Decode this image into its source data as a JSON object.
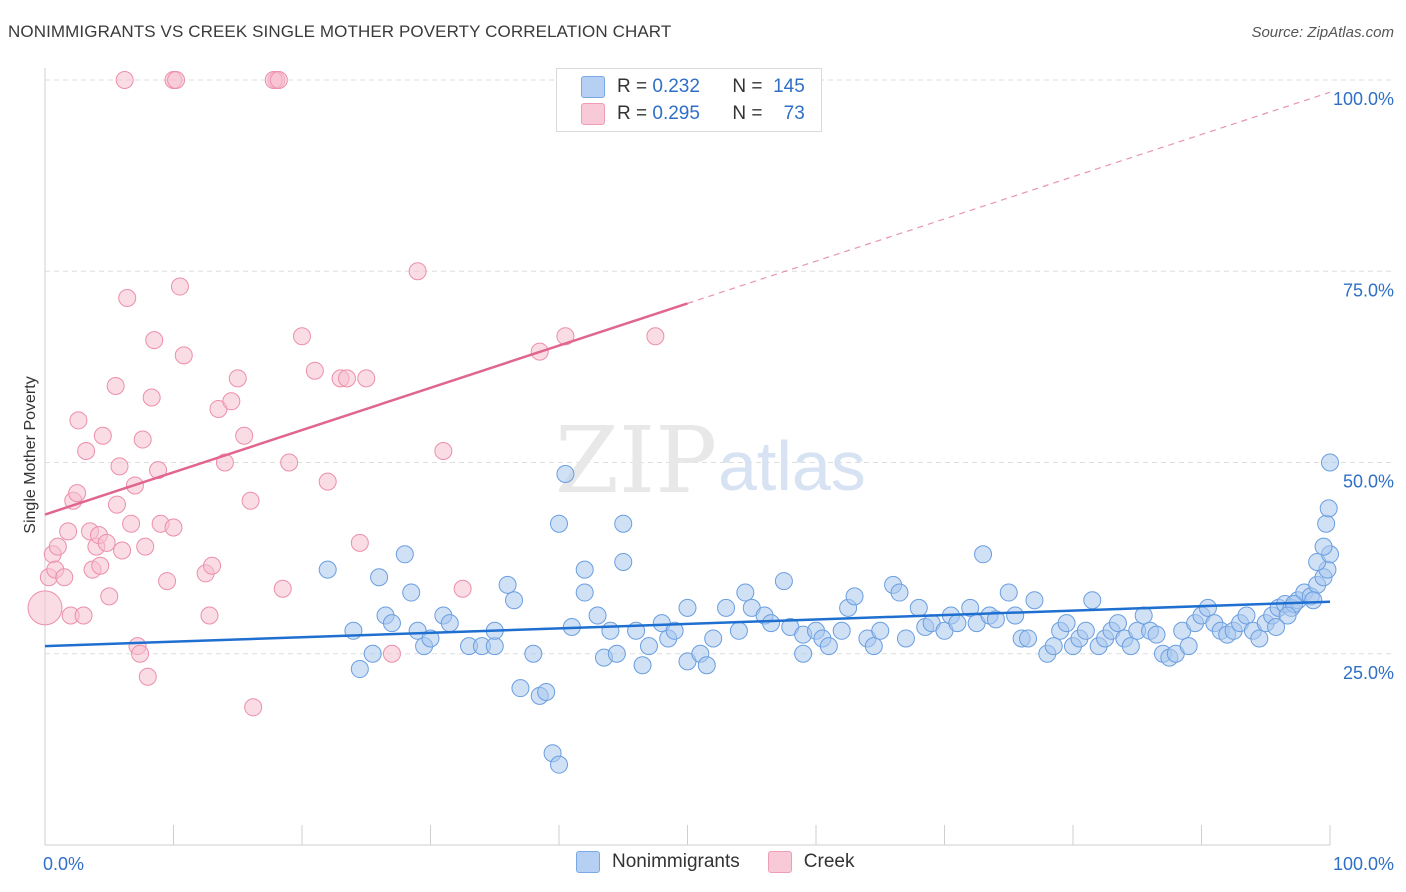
{
  "header": {
    "title": "NONIMMIGRANTS VS CREEK SINGLE MOTHER POVERTY CORRELATION CHART",
    "source": "Source: ZipAtlas.com"
  },
  "legend_top": {
    "rows": [
      {
        "r_label": "R =",
        "r_value": "0.232",
        "n_label": "N =",
        "n_value": "145"
      },
      {
        "r_label": "R =",
        "r_value": "0.295",
        "n_label": "N =",
        "n_value": "73"
      }
    ]
  },
  "legend_bottom": {
    "items": [
      "Nonimmigrants",
      "Creek"
    ]
  },
  "watermark": {
    "zip": "ZIP",
    "atlas": "atlas"
  },
  "colors": {
    "blue_fill": "#a9c8ef",
    "blue_stroke": "#6a9ee0",
    "blue_line": "#1f6fd0",
    "pink_fill": "#f6bfd0",
    "pink_stroke": "#ec8fab",
    "pink_line": "#e0668f",
    "axis_label": "#2f6fc6",
    "grid": "#dedede"
  },
  "chart_data": {
    "type": "scatter",
    "title": "NONIMMIGRANTS VS CREEK SINGLE MOTHER POVERTY CORRELATION CHART",
    "xlabel": "",
    "ylabel": "Single Mother Poverty",
    "xlim": [
      0,
      100
    ],
    "ylim": [
      0,
      100
    ],
    "x_tick_labels": [
      "0.0%",
      "100.0%"
    ],
    "y_ticks": [
      25,
      50,
      75,
      100
    ],
    "y_tick_labels": [
      "25.0%",
      "50.0%",
      "75.0%",
      "100.0%"
    ],
    "grid": true,
    "legend_position": "top-center",
    "series": [
      {
        "name": "Nonimmigrants",
        "color": "#6a9ee0",
        "trend": {
          "x": [
            0,
            100
          ],
          "y": [
            26,
            31.8
          ]
        },
        "points": [
          [
            22,
            36
          ],
          [
            24,
            28
          ],
          [
            24.5,
            23
          ],
          [
            25.5,
            25
          ],
          [
            26,
            35
          ],
          [
            26.5,
            30
          ],
          [
            27,
            29
          ],
          [
            28,
            38
          ],
          [
            28.5,
            33
          ],
          [
            29,
            28
          ],
          [
            29.5,
            26
          ],
          [
            30,
            27
          ],
          [
            31,
            30
          ],
          [
            31.5,
            29
          ],
          [
            33,
            26
          ],
          [
            34,
            26
          ],
          [
            35,
            26
          ],
          [
            35,
            28
          ],
          [
            36,
            34
          ],
          [
            36.5,
            32
          ],
          [
            37,
            20.5
          ],
          [
            38,
            25
          ],
          [
            38.5,
            19.5
          ],
          [
            39,
            20
          ],
          [
            39.5,
            12
          ],
          [
            40,
            10.5
          ],
          [
            40,
            42
          ],
          [
            40.5,
            48.5
          ],
          [
            41,
            28.5
          ],
          [
            42,
            36
          ],
          [
            42,
            33
          ],
          [
            43,
            30
          ],
          [
            43.5,
            24.5
          ],
          [
            44,
            28
          ],
          [
            44.5,
            25
          ],
          [
            45,
            42
          ],
          [
            45,
            37
          ],
          [
            46,
            28
          ],
          [
            46.5,
            23.5
          ],
          [
            47,
            26
          ],
          [
            48,
            29
          ],
          [
            48.5,
            27
          ],
          [
            49,
            28
          ],
          [
            50,
            24
          ],
          [
            50,
            31
          ],
          [
            51,
            25
          ],
          [
            51.5,
            23.5
          ],
          [
            52,
            27
          ],
          [
            53,
            31
          ],
          [
            54,
            28
          ],
          [
            54.5,
            33
          ],
          [
            55,
            31
          ],
          [
            56,
            30
          ],
          [
            56.5,
            29
          ],
          [
            57.5,
            34.5
          ],
          [
            58,
            28.5
          ],
          [
            59,
            25
          ],
          [
            59,
            27.5
          ],
          [
            60,
            28
          ],
          [
            60.5,
            27
          ],
          [
            61,
            26
          ],
          [
            62,
            28
          ],
          [
            62.5,
            31
          ],
          [
            63,
            32.5
          ],
          [
            64,
            27
          ],
          [
            64.5,
            26
          ],
          [
            65,
            28
          ],
          [
            66,
            34
          ],
          [
            66.5,
            33
          ],
          [
            67,
            27
          ],
          [
            68,
            31
          ],
          [
            68.5,
            28.5
          ],
          [
            69,
            29
          ],
          [
            70,
            28
          ],
          [
            70.5,
            30
          ],
          [
            71,
            29
          ],
          [
            72,
            31
          ],
          [
            72.5,
            29
          ],
          [
            73,
            38
          ],
          [
            73.5,
            30
          ],
          [
            74,
            29.5
          ],
          [
            75,
            33
          ],
          [
            75.5,
            30
          ],
          [
            76,
            27
          ],
          [
            76.5,
            27
          ],
          [
            77,
            32
          ],
          [
            78,
            25
          ],
          [
            78.5,
            26
          ],
          [
            79,
            28
          ],
          [
            79.5,
            29
          ],
          [
            80,
            26
          ],
          [
            80.5,
            27
          ],
          [
            81,
            28
          ],
          [
            81.5,
            32
          ],
          [
            82,
            26
          ],
          [
            82.5,
            27
          ],
          [
            83,
            28
          ],
          [
            83.5,
            29
          ],
          [
            84,
            27
          ],
          [
            84.5,
            26
          ],
          [
            85,
            28
          ],
          [
            85.5,
            30
          ],
          [
            86,
            28
          ],
          [
            86.5,
            27.5
          ],
          [
            87,
            25
          ],
          [
            87.5,
            24.5
          ],
          [
            88,
            25
          ],
          [
            88.5,
            28
          ],
          [
            89,
            26
          ],
          [
            89.5,
            29
          ],
          [
            90,
            30
          ],
          [
            90.5,
            31
          ],
          [
            91,
            29
          ],
          [
            91.5,
            28
          ],
          [
            92,
            27.5
          ],
          [
            92.5,
            28
          ],
          [
            93,
            29
          ],
          [
            93.5,
            30
          ],
          [
            94,
            28
          ],
          [
            94.5,
            27
          ],
          [
            95,
            29
          ],
          [
            95.5,
            30
          ],
          [
            96,
            31
          ],
          [
            96.5,
            31.5
          ],
          [
            97,
            31
          ],
          [
            97.5,
            32
          ],
          [
            98,
            33
          ],
          [
            98.5,
            32.5
          ],
          [
            99,
            34
          ],
          [
            99.5,
            35
          ],
          [
            99.8,
            36
          ],
          [
            99,
            37
          ],
          [
            100,
            38
          ],
          [
            99.5,
            39
          ],
          [
            99.7,
            42
          ],
          [
            99.9,
            44
          ],
          [
            100,
            50
          ],
          [
            98.7,
            32
          ],
          [
            97.2,
            31.5
          ],
          [
            96.7,
            30
          ],
          [
            95.8,
            28.5
          ]
        ]
      },
      {
        "name": "Creek",
        "color": "#ec8fab",
        "trend": {
          "x": [
            0,
            50
          ],
          "y": [
            43.2,
            70.8
          ]
        },
        "points": [
          [
            0,
            31
          ],
          [
            0.3,
            35
          ],
          [
            0.6,
            38
          ],
          [
            0.8,
            36
          ],
          [
            1,
            39
          ],
          [
            1.5,
            35
          ],
          [
            1.8,
            41
          ],
          [
            2,
            30
          ],
          [
            2.2,
            45
          ],
          [
            2.5,
            46
          ],
          [
            2.6,
            55.5
          ],
          [
            3,
            30
          ],
          [
            3.2,
            51.5
          ],
          [
            3.5,
            41
          ],
          [
            3.7,
            36
          ],
          [
            4,
            39
          ],
          [
            4.2,
            40.5
          ],
          [
            4.3,
            36.5
          ],
          [
            4.5,
            53.5
          ],
          [
            4.8,
            39.5
          ],
          [
            5,
            32.5
          ],
          [
            5.5,
            60
          ],
          [
            5.6,
            44.5
          ],
          [
            5.8,
            49.5
          ],
          [
            6,
            38.5
          ],
          [
            6.4,
            71.5
          ],
          [
            6.7,
            42
          ],
          [
            7,
            47
          ],
          [
            7.2,
            26
          ],
          [
            7.4,
            25
          ],
          [
            7.6,
            53
          ],
          [
            7.8,
            39
          ],
          [
            8,
            22
          ],
          [
            8.3,
            58.5
          ],
          [
            8.5,
            66
          ],
          [
            8.8,
            49
          ],
          [
            9,
            42
          ],
          [
            9.5,
            34.5
          ],
          [
            10,
            100
          ],
          [
            10,
            41.5
          ],
          [
            10.5,
            73
          ],
          [
            10.8,
            64
          ],
          [
            12.5,
            35.5
          ],
          [
            12.8,
            30
          ],
          [
            13,
            36.5
          ],
          [
            13.5,
            57
          ],
          [
            14,
            50
          ],
          [
            14.5,
            58
          ],
          [
            15,
            61
          ],
          [
            15.5,
            53.5
          ],
          [
            16,
            45
          ],
          [
            16.2,
            18
          ],
          [
            18,
            100
          ],
          [
            18.5,
            33.5
          ],
          [
            19,
            50
          ],
          [
            20,
            66.5
          ],
          [
            21,
            62
          ],
          [
            22,
            47.5
          ],
          [
            23,
            61
          ],
          [
            23.5,
            61
          ],
          [
            24.5,
            39.5
          ],
          [
            25,
            61
          ],
          [
            27,
            25
          ],
          [
            29,
            75
          ],
          [
            31,
            51.5
          ],
          [
            32.5,
            33.5
          ],
          [
            6.2,
            100
          ],
          [
            10.2,
            100
          ],
          [
            17.8,
            100
          ],
          [
            18.2,
            100
          ],
          [
            38.5,
            64.5
          ],
          [
            40.5,
            66.5
          ],
          [
            47.5,
            66.5
          ]
        ]
      }
    ]
  }
}
